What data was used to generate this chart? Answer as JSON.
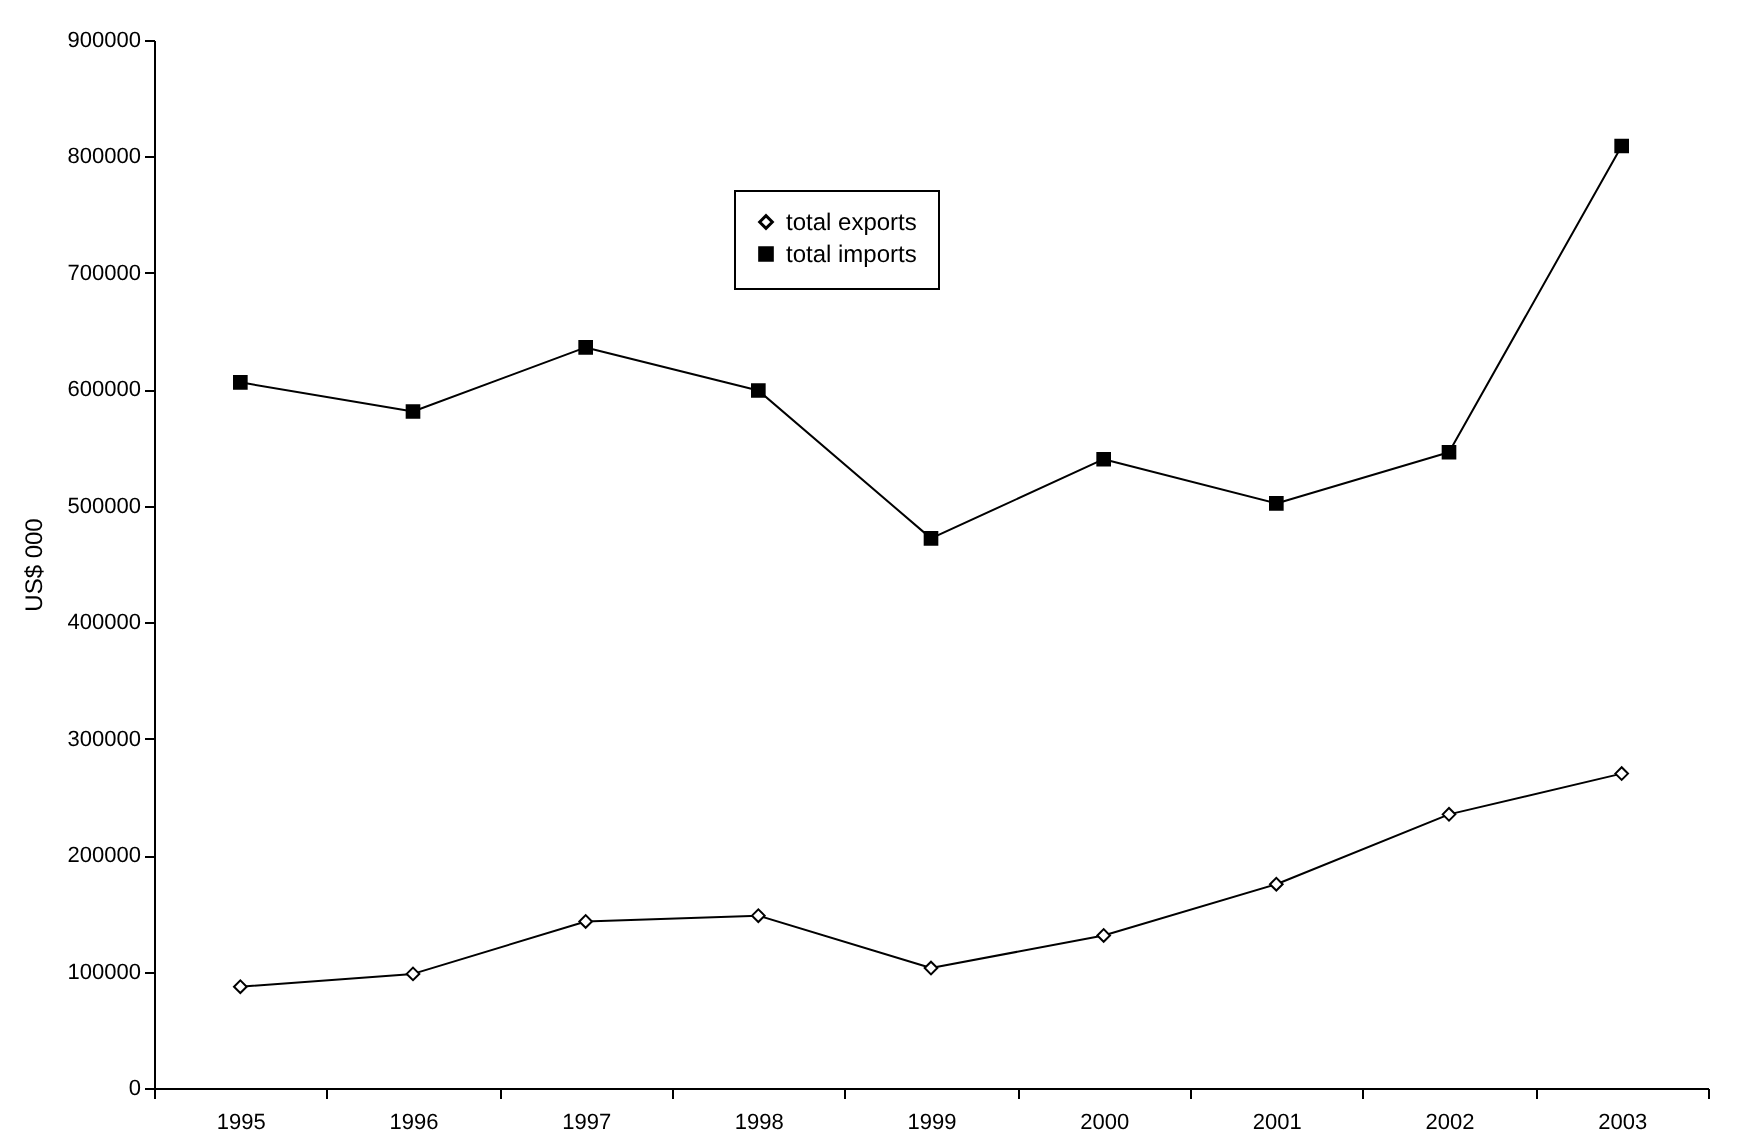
{
  "chart_data": {
    "type": "line",
    "ylabel": "US$ 000",
    "categories": [
      "1995",
      "1996",
      "1997",
      "1998",
      "1999",
      "2000",
      "2001",
      "2002",
      "2003"
    ],
    "series": [
      {
        "name": "total exports",
        "color": "#000000",
        "marker": "diamond",
        "values": [
          87000,
          98000,
          143000,
          148000,
          103000,
          131000,
          175000,
          235000,
          270000
        ]
      },
      {
        "name": "total imports",
        "color": "#000000",
        "marker": "square",
        "values": [
          606000,
          581000,
          636000,
          599000,
          472000,
          540000,
          502000,
          546000,
          809000
        ]
      }
    ],
    "ylim": [
      0,
      900000
    ],
    "yticks": [
      0,
      100000,
      200000,
      300000,
      400000,
      500000,
      600000,
      700000,
      800000,
      900000
    ],
    "grid": false,
    "legend": "top"
  }
}
